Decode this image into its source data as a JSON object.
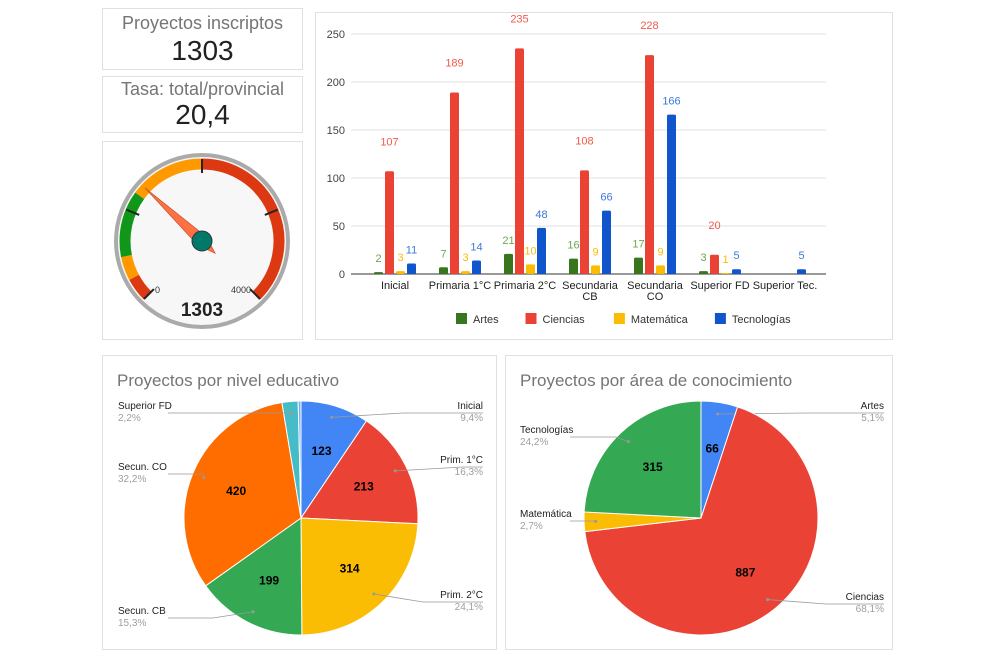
{
  "kpis": [
    {
      "title": "Proyectos inscriptos",
      "value": "1303"
    },
    {
      "title": "Tasa: total/provincial",
      "value": "20,4"
    }
  ],
  "gauge": {
    "value": 1303,
    "value_label": "1303",
    "min": 0,
    "max": 4000,
    "min_label": "0",
    "max_label": "4000",
    "bands": [
      {
        "from": 0,
        "to": 250,
        "color": "#dc3912"
      },
      {
        "from": 250,
        "to": 500,
        "color": "#ff9900"
      },
      {
        "from": 500,
        "to": 1200,
        "color": "#109618"
      },
      {
        "from": 1200,
        "to": 2000,
        "color": "#ff9900"
      },
      {
        "from": 2000,
        "to": 4000,
        "color": "#dc3912"
      }
    ]
  },
  "chart_data": [
    {
      "type": "bar",
      "title": "",
      "ylim": [
        0,
        250
      ],
      "yticks": [
        "0",
        "50",
        "100",
        "150",
        "200",
        "250"
      ],
      "categories": [
        "Inicial",
        "Primaria 1°C",
        "Primaria 2°C",
        "Secundaria|CB",
        "Secundaria|CO",
        "Superior FD",
        "Superior Tec."
      ],
      "series": [
        {
          "name": "Artes",
          "color": "#38761d",
          "label_color": "#6aa84f",
          "values": [
            2,
            7,
            21,
            16,
            17,
            3,
            null
          ]
        },
        {
          "name": "Ciencias",
          "color": "#ea4335",
          "label_color": "#f2584b",
          "values": [
            107,
            189,
            235,
            108,
            228,
            20,
            null
          ]
        },
        {
          "name": "Matemática",
          "color": "#fbbc04",
          "label_color": "#fbbc04",
          "values": [
            3,
            3,
            10,
            9,
            9,
            1,
            null
          ]
        },
        {
          "name": "Tecnologías",
          "color": "#1155cc",
          "label_color": "#3c78d8",
          "values": [
            11,
            14,
            48,
            66,
            166,
            5,
            5
          ]
        }
      ],
      "legend": "bottom"
    },
    {
      "type": "pie",
      "title": "Proyectos por nivel educativo",
      "slices": [
        {
          "label": "Inicial",
          "value": 123,
          "pct": "9,4%",
          "color": "#4285f4"
        },
        {
          "label": "Prim. 1°C",
          "value": 213,
          "pct": "16,3%",
          "color": "#ea4335"
        },
        {
          "label": "Prim. 2°C",
          "value": 314,
          "pct": "24,1%",
          "color": "#fbbc04"
        },
        {
          "label": "Secun. CB",
          "value": 199,
          "pct": "15,3%",
          "color": "#34a853"
        },
        {
          "label": "Secun. CO",
          "value": 420,
          "pct": "32,2%",
          "color": "#ff6d01"
        },
        {
          "label": "Superior FD",
          "value": 29,
          "pct": "2,2%",
          "color": "#46bdc6"
        },
        {
          "label": "",
          "value": 5,
          "pct": "",
          "color": "#7baaf7"
        }
      ]
    },
    {
      "type": "pie",
      "title": "Proyectos por área de conocimiento",
      "slices": [
        {
          "label": "Artes",
          "value": 66,
          "pct": "5,1%",
          "color": "#4285f4"
        },
        {
          "label": "Ciencias",
          "value": 887,
          "pct": "68,1%",
          "color": "#ea4335"
        },
        {
          "label": "Matemática",
          "value": 35,
          "pct": "2,7%",
          "color": "#fbbc04"
        },
        {
          "label": "Tecnologías",
          "value": 315,
          "pct": "24,2%",
          "color": "#34a853"
        }
      ]
    }
  ]
}
